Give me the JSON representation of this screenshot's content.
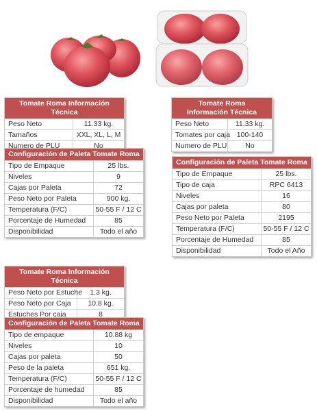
{
  "tables": [
    {
      "title": "Tomate Roma Información Técnica",
      "rows": [
        [
          "Peso Neto",
          "11.33 kg."
        ],
        [
          "Tamaños",
          "XXL, XL, L, M"
        ],
        [
          "Numero de PLU",
          "No"
        ]
      ]
    },
    {
      "title": "Configuración de Paleta Tomate Roma",
      "rows": [
        [
          "Tipo de Empaque",
          "25 lbs."
        ],
        [
          "Niveles",
          "9"
        ],
        [
          "Cajas por Paleta",
          "72"
        ],
        [
          "Peso Neto por Paleta",
          "900 kg."
        ],
        [
          "Temperatura (F/C)",
          "50-55 F / 12 C"
        ],
        [
          "Porcentaje de Humedad",
          "85"
        ],
        [
          "Disponibilidad",
          "Todo el año"
        ]
      ]
    },
    {
      "title": "Tomate Roma Información Técnica",
      "rows": [
        [
          "Peso Neto",
          "11.33 kg."
        ],
        [
          "Tomates por caja",
          "100-140"
        ],
        [
          "Numero de PLU",
          "No"
        ]
      ]
    },
    {
      "title": "Configuración de Paleta Tomate Roma",
      "rows": [
        [
          "Tipo de Empaque",
          "25 lbs."
        ],
        [
          "Tipo de caja",
          "RPC 6413"
        ],
        [
          "Niveles",
          "16"
        ],
        [
          "Cajas por paleta",
          "80"
        ],
        [
          "Peso Neto por Paleta",
          "2195"
        ],
        [
          "Temperatura (F/C)",
          "50-55 F / 12 C"
        ],
        [
          "Porcentaje de Humedad",
          "85"
        ],
        [
          "Disponibilidad",
          "Todo el Año"
        ]
      ]
    },
    {
      "title": "Tomate Roma Información Técnica",
      "rows": [
        [
          "Peso Neto por Estuche",
          "1.3 kg."
        ],
        [
          "Peso Neto por Caja",
          "10.8 kg."
        ],
        [
          "Estuches Por caja",
          "8"
        ]
      ]
    },
    {
      "title": "Configuración de Paleta Tomate Roma",
      "rows": [
        [
          "Tipo de empaque",
          "10.88 kg"
        ],
        [
          "Niveles",
          "10"
        ],
        [
          "Cajas por paleta",
          "50"
        ],
        [
          "Peso de la paleta",
          "651 kg."
        ],
        [
          "Temperatura (F/C)",
          "50-55 F / 12 C"
        ],
        [
          "Porcentaje de humedad",
          "85"
        ],
        [
          "Disponibilidad",
          "Todo el año"
        ]
      ]
    }
  ]
}
